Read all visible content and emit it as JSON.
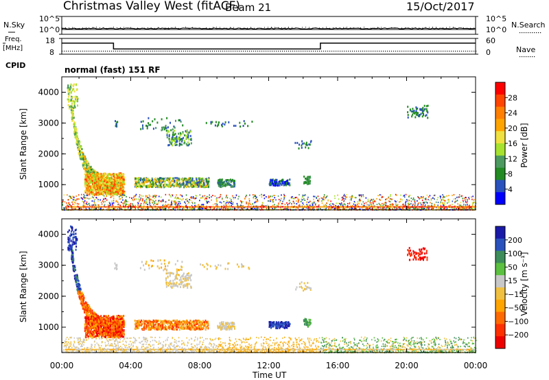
{
  "header": {
    "title": "Christmas Valley West (fitACF)",
    "beam": "Beam 21",
    "date": "15/Oct/2017",
    "cpid_label": "CPID",
    "cpid_value": "normal (fast) 151 RF"
  },
  "strip_nsky": {
    "left_label": "N.Sky",
    "right_label": "N.Search",
    "left_ticks": [
      "10^5",
      "10^0"
    ],
    "right_ticks": [
      "10^5",
      "10^0"
    ]
  },
  "strip_freq": {
    "left_label_1": "Freq.",
    "left_label_2": "[MHz]",
    "right_label": "Nave",
    "left_ticks": [
      "18",
      "8"
    ],
    "right_ticks": [
      "60",
      "0"
    ],
    "freq_steps": [
      {
        "t0": 0,
        "t1": 3.0,
        "mhz": 15.0
      },
      {
        "t0": 3.0,
        "t1": 15.0,
        "mhz": 11.3
      },
      {
        "t0": 15.0,
        "t1": 24,
        "mhz": 15.0
      }
    ],
    "nave_level": 0.35
  },
  "chart_data": [
    {
      "type": "heatmap",
      "name": "power",
      "ylabel": "Slant Range [km]",
      "xlabel": "Time UT",
      "x_range_hours": [
        0,
        24
      ],
      "ylim": [
        180,
        4500
      ],
      "y_ticks": [
        1000,
        2000,
        3000,
        4000
      ],
      "x_tick_labels": [
        "00:00",
        "04:00",
        "08:00",
        "12:00",
        "16:00",
        "20:00",
        "00:00"
      ],
      "colorbar": {
        "label": "Power [dB]",
        "ticks": [
          "4",
          "8",
          "12",
          "16",
          "20",
          "24",
          "28"
        ],
        "colors": [
          "#0000ff",
          "#2a52be",
          "#228b22",
          "#4c9a60",
          "#a6e22e",
          "#f0e040",
          "#ffa500",
          "#ff7f00",
          "#ff4500",
          "#ff0000"
        ]
      }
    },
    {
      "type": "heatmap",
      "name": "velocity",
      "ylabel": "Slant Range [km]",
      "xlabel": "Time UT",
      "x_range_hours": [
        0,
        24
      ],
      "ylim": [
        180,
        4500
      ],
      "y_ticks": [
        1000,
        2000,
        3000,
        4000
      ],
      "x_tick_labels": [
        "00:00",
        "04:00",
        "08:00",
        "12:00",
        "16:00",
        "20:00",
        "00:00"
      ],
      "colorbar": {
        "label": "Velocity [m s⁻¹]",
        "ticks": [
          "200",
          "100",
          "50",
          "15",
          "−15",
          "−50",
          "−100",
          "−200"
        ],
        "colors": [
          "#1a1aa8",
          "#2a52be",
          "#3d8d5a",
          "#5cc040",
          "#c8c8c8",
          "#f0c040",
          "#ffa500",
          "#ff6a00",
          "#ff3000",
          "#ee0000"
        ]
      }
    }
  ]
}
